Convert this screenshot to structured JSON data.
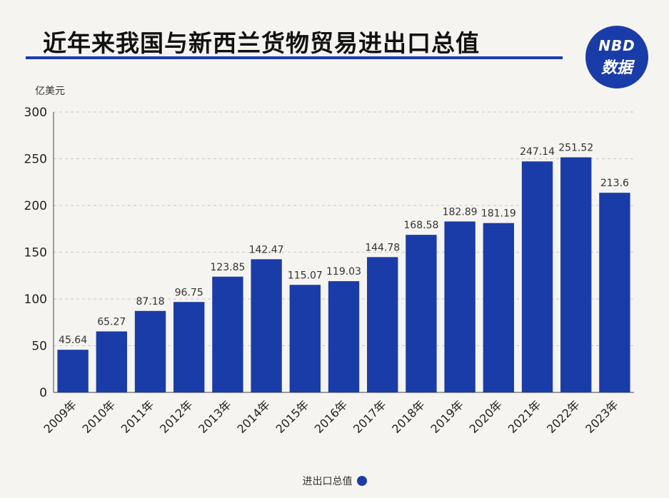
{
  "header": {
    "title": "近年来我国与新西兰货物贸易进出口总值",
    "logo_line1": "NBD",
    "logo_line2": "数据"
  },
  "chart_data": {
    "type": "bar",
    "title": "近年来我国与新西兰货物贸易进出口总值",
    "ylabel": "亿美元",
    "xlabel": "",
    "ylim": [
      0,
      300
    ],
    "yticks": [
      0,
      50,
      100,
      150,
      200,
      250,
      300
    ],
    "grid": true,
    "legend_position": "bottom",
    "categories": [
      "2009年",
      "2010年",
      "2011年",
      "2012年",
      "2013年",
      "2014年",
      "2015年",
      "2016年",
      "2017年",
      "2018年",
      "2019年",
      "2020年",
      "2021年",
      "2022年",
      "2023年"
    ],
    "series": [
      {
        "name": "进出口总值",
        "values": [
          45.64,
          65.27,
          87.18,
          96.75,
          123.85,
          142.47,
          115.07,
          119.03,
          144.78,
          168.58,
          182.89,
          181.19,
          247.14,
          251.52,
          213.6
        ],
        "labels": [
          "45.64",
          "65.27",
          "87.18",
          "96.75",
          "123.85",
          "142.47",
          "115.07",
          "119.03",
          "144.78",
          "168.58",
          "182.89",
          "181.19",
          "247.14",
          "251.52",
          "213.6"
        ]
      }
    ],
    "colors": {
      "bar": "#1a3ca8",
      "grid": "#c9c9c9",
      "axis": "#333333"
    }
  }
}
